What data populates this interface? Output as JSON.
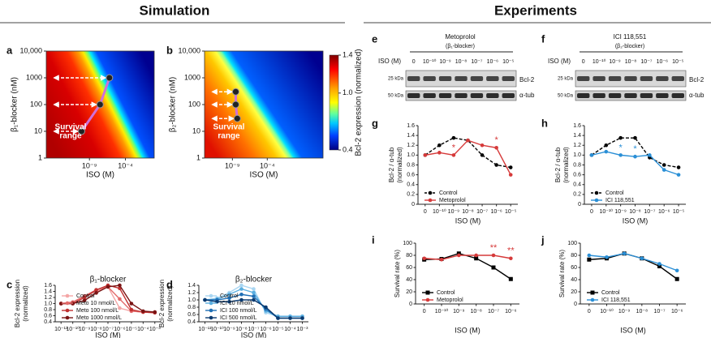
{
  "headings": [
    "Simulation",
    "Experiments"
  ],
  "chart_data": [
    {
      "type": "heatmap",
      "label": "a",
      "xlabel": "ISO (M)",
      "ylabel": "β₁-blocker (nM)",
      "xscale": "log",
      "yscale": "log",
      "xlim": [
        1e-15,
        1
      ],
      "ylim": [
        1,
        10000
      ],
      "xticks": [
        {
          "value": 1e-09,
          "label": "10⁻⁹"
        },
        {
          "value": 0.0001,
          "label": "10⁻⁴"
        }
      ],
      "yticks": [
        1,
        10,
        100,
        1000,
        {
          "value": 10000,
          "label": "10,000"
        }
      ],
      "points": {
        "x": [
          6e-07,
          3e-08,
          8e-11
        ],
        "y": [
          1000,
          100,
          10
        ]
      },
      "annotation": [
        "Survival",
        "range"
      ]
    },
    {
      "type": "heatmap",
      "label": "b",
      "xlabel": "ISO (M)",
      "ylabel": "β₂-blocker (nM)",
      "xscale": "log",
      "yscale": "log",
      "xlim": [
        1e-13,
        10000
      ],
      "ylim": [
        1,
        10000
      ],
      "xticks": [
        {
          "value": 1e-09,
          "label": "10⁻⁹"
        },
        {
          "value": 0.0001,
          "label": "10⁻⁴"
        }
      ],
      "yticks": [
        1,
        10,
        100,
        1000,
        {
          "value": 10000,
          "label": "10,000"
        }
      ],
      "points": {
        "x": [
          3e-09,
          3e-09,
          5e-09
        ],
        "y": [
          300,
          100,
          30
        ]
      },
      "annotation": [
        "Survival",
        "range"
      ],
      "colorbar": {
        "label": "Bcl-2 expression (normalized)",
        "lim": [
          0.4,
          1.4
        ],
        "ticks": [
          0.4,
          {
            "value": 1,
            "label": "1.0"
          },
          1.4
        ]
      }
    },
    {
      "type": "line",
      "label": "c",
      "title": "β₁-blocker",
      "xlabel": "ISO (M)",
      "ylabel": [
        "Bcl-2 expression",
        "(normalized)"
      ],
      "categories": [
        "10⁻¹¹",
        "10⁻¹⁰",
        "10⁻⁹",
        "10⁻⁸",
        "10⁻⁷",
        "10⁻⁶",
        "10⁻⁵",
        "10⁻⁴",
        "10⁻³"
      ],
      "ylim": [
        0.4,
        1.6
      ],
      "yticks": [
        0.4,
        0.6,
        0.8,
        {
          "value": 1,
          "label": "1.0"
        },
        1.2,
        1.4,
        1.6
      ],
      "legend": "lower left",
      "series": [
        {
          "name": "Control",
          "color": "#f4a6a6",
          "marker": "circle",
          "values": [
            1.0,
            1.02,
            1.2,
            1.4,
            1.55,
            0.85,
            0.75,
            0.72,
            0.72
          ]
        },
        {
          "name": "Meto 10 nmol/L",
          "color": "#e36b6b",
          "marker": "circle",
          "values": [
            1.0,
            1.05,
            1.25,
            1.45,
            1.55,
            1.15,
            0.75,
            0.72,
            0.7
          ]
        },
        {
          "name": "Meto 100 nmol/L",
          "color": "#c03030",
          "marker": "circle",
          "values": [
            1.0,
            1.0,
            1.2,
            1.45,
            1.6,
            1.5,
            0.8,
            0.72,
            0.7
          ]
        },
        {
          "name": "Meto 1000 nmol/L",
          "color": "#7a1515",
          "marker": "circle",
          "values": [
            1.0,
            1.0,
            1.1,
            1.35,
            1.55,
            1.6,
            1.0,
            0.75,
            0.72
          ]
        }
      ]
    },
    {
      "type": "line",
      "label": "d",
      "title": "β₂-blocker",
      "xlabel": "ISO (M)",
      "ylabel": [
        "Bcl-2 expression",
        "(normalized)"
      ],
      "categories": [
        "10⁻¹¹",
        "10⁻¹⁰",
        "10⁻⁹",
        "10⁻⁸",
        "10⁻⁷",
        "10⁻⁶",
        "10⁻⁵",
        "10⁻⁴",
        "10⁻³"
      ],
      "ylim": [
        0.4,
        1.4
      ],
      "yticks": [
        0.4,
        0.6,
        0.8,
        {
          "value": 1,
          "label": "1.0"
        },
        1.2,
        1.4
      ],
      "legend": "lower left",
      "series": [
        {
          "name": "Control",
          "color": "#a9d6f2",
          "marker": "circle",
          "values": [
            1.0,
            1.05,
            1.2,
            1.4,
            1.3,
            0.65,
            0.55,
            0.55,
            0.55
          ]
        },
        {
          "name": "ICI 10 nmol/L",
          "color": "#5aaee0",
          "marker": "circle",
          "values": [
            1.0,
            1.02,
            1.15,
            1.3,
            1.2,
            0.7,
            0.55,
            0.55,
            0.55
          ]
        },
        {
          "name": "ICI 100 nmol/L",
          "color": "#1f6fb5",
          "marker": "circle",
          "values": [
            1.0,
            1.0,
            1.05,
            1.15,
            1.1,
            0.75,
            0.5,
            0.5,
            0.5
          ]
        },
        {
          "name": "ICI 500 nmol/L",
          "color": "#0a3a70",
          "marker": "circle",
          "values": [
            1.0,
            0.95,
            0.95,
            1.0,
            1.0,
            0.8,
            0.5,
            0.5,
            0.5
          ]
        }
      ]
    },
    {
      "type": "line",
      "label": "g",
      "xlabel": "ISO (M)",
      "ylabel": [
        "Bcl-2 / α-tub",
        "(normalized)"
      ],
      "categories": [
        "0",
        "10⁻¹⁰",
        "10⁻⁹",
        "10⁻⁸",
        "10⁻⁷",
        "10⁻⁶",
        "10⁻⁵"
      ],
      "ylim": [
        0,
        1.6
      ],
      "yticks": [
        0,
        0.2,
        0.4,
        0.6,
        0.8,
        {
          "value": 1,
          "label": "1.0"
        },
        1.2,
        1.4,
        1.6
      ],
      "legend": "lower left",
      "series": [
        {
          "name": "Control",
          "color": "#000000",
          "marker": "circle",
          "dash": true,
          "values": [
            1.0,
            1.2,
            1.35,
            1.3,
            1.0,
            0.8,
            0.75
          ]
        },
        {
          "name": "Metoprolol",
          "color": "#d63a3a",
          "marker": "circle",
          "values": [
            1.0,
            1.05,
            1.0,
            1.3,
            1.2,
            1.15,
            0.6
          ]
        }
      ],
      "annotations": [
        {
          "text": "*",
          "series": "Metoprolol",
          "category": "10⁻⁹",
          "color": "#d63a3a"
        },
        {
          "text": "*",
          "series": "Metoprolol",
          "category": "10⁻⁶",
          "color": "#d63a3a"
        }
      ]
    },
    {
      "type": "line",
      "label": "h",
      "xlabel": "ISO (M)",
      "ylabel": [
        "Bcl-2 / α-tub",
        "(normalized)"
      ],
      "categories": [
        "0",
        "10⁻¹⁰",
        "10⁻⁹",
        "10⁻⁸",
        "10⁻⁷",
        "10⁻⁶",
        "10⁻⁵"
      ],
      "ylim": [
        0,
        1.6
      ],
      "yticks": [
        0,
        0.2,
        0.4,
        0.6,
        0.8,
        {
          "value": 1,
          "label": "1.0"
        },
        1.2,
        1.4,
        1.6
      ],
      "legend": "lower left",
      "series": [
        {
          "name": "Control",
          "color": "#000000",
          "marker": "circle",
          "dash": true,
          "values": [
            1.0,
            1.2,
            1.35,
            1.35,
            0.95,
            0.8,
            0.75
          ]
        },
        {
          "name": "ICI 118,551",
          "color": "#2a8fd6",
          "marker": "circle",
          "values": [
            1.0,
            1.07,
            1.0,
            0.97,
            1.0,
            0.7,
            0.6
          ]
        }
      ],
      "annotations": [
        {
          "text": "*",
          "series": "ICI 118,551",
          "category": "10⁻⁹",
          "color": "#2a8fd6"
        },
        {
          "text": "*",
          "series": "ICI 118,551",
          "category": "10⁻⁸",
          "color": "#2a8fd6"
        }
      ]
    },
    {
      "type": "line",
      "label": "i",
      "xlabel": "ISO (M)",
      "ylabel": [
        "Survival rate (%)"
      ],
      "categories": [
        "0",
        "10⁻¹⁰",
        "10⁻⁹",
        "10⁻⁸",
        "10⁻⁷",
        "10⁻⁶"
      ],
      "ylim": [
        0,
        100
      ],
      "yticks": [
        0,
        20,
        40,
        60,
        80,
        100
      ],
      "legend": "lower left",
      "series": [
        {
          "name": "Control",
          "color": "#000000",
          "marker": "square",
          "values": [
            73,
            74,
            83,
            75,
            60,
            41
          ]
        },
        {
          "name": "Metoprolol",
          "color": "#d63a3a",
          "marker": "circle",
          "values": [
            75,
            73,
            80,
            80,
            80,
            75
          ]
        }
      ],
      "annotations": [
        {
          "text": "**",
          "series": "Metoprolol",
          "category": "10⁻⁷",
          "color": "#d63a3a"
        },
        {
          "text": "**",
          "series": "Metoprolol",
          "category": "10⁻⁶",
          "color": "#d63a3a"
        }
      ]
    },
    {
      "type": "line",
      "label": "j",
      "xlabel": "ISO (M)",
      "ylabel": [
        "Survival rate (%)"
      ],
      "categories": [
        "0",
        "10⁻¹⁰",
        "10⁻⁹",
        "10⁻⁸",
        "10⁻⁷",
        "10⁻⁶"
      ],
      "ylim": [
        0,
        100
      ],
      "yticks": [
        0,
        20,
        40,
        60,
        80,
        100
      ],
      "legend": "lower left",
      "series": [
        {
          "name": "Control",
          "color": "#000000",
          "marker": "square",
          "values": [
            73,
            75,
            83,
            75,
            62,
            41
          ]
        },
        {
          "name": "ICI 118,551",
          "color": "#2a8fd6",
          "marker": "circle",
          "values": [
            80,
            77,
            83,
            75,
            66,
            55
          ]
        }
      ]
    }
  ],
  "blots": [
    {
      "label": "e",
      "drug": "Metoprolol",
      "class": "(β₁-blocker)",
      "iso_label": "ISO (M)",
      "lanes": [
        "0",
        "10⁻¹⁰",
        "10⁻⁹",
        "10⁻⁸",
        "10⁻⁷",
        "10⁻⁶",
        "10⁻⁵"
      ],
      "markers": [
        "25 kDa",
        "50 kDa"
      ],
      "proteins": [
        "Bcl-2",
        "α-tub"
      ]
    },
    {
      "label": "f",
      "drug": "ICI 118,551",
      "class": "(β₂-blocker)",
      "iso_label": "ISO (M)",
      "lanes": [
        "0",
        "10⁻¹⁰",
        "10⁻⁹",
        "10⁻⁸",
        "10⁻⁷",
        "10⁻⁶",
        "10⁻⁵"
      ],
      "markers": [
        "25 kDa",
        "50 kDa"
      ],
      "proteins": [
        "Bcl-2",
        "α-tub"
      ]
    }
  ]
}
